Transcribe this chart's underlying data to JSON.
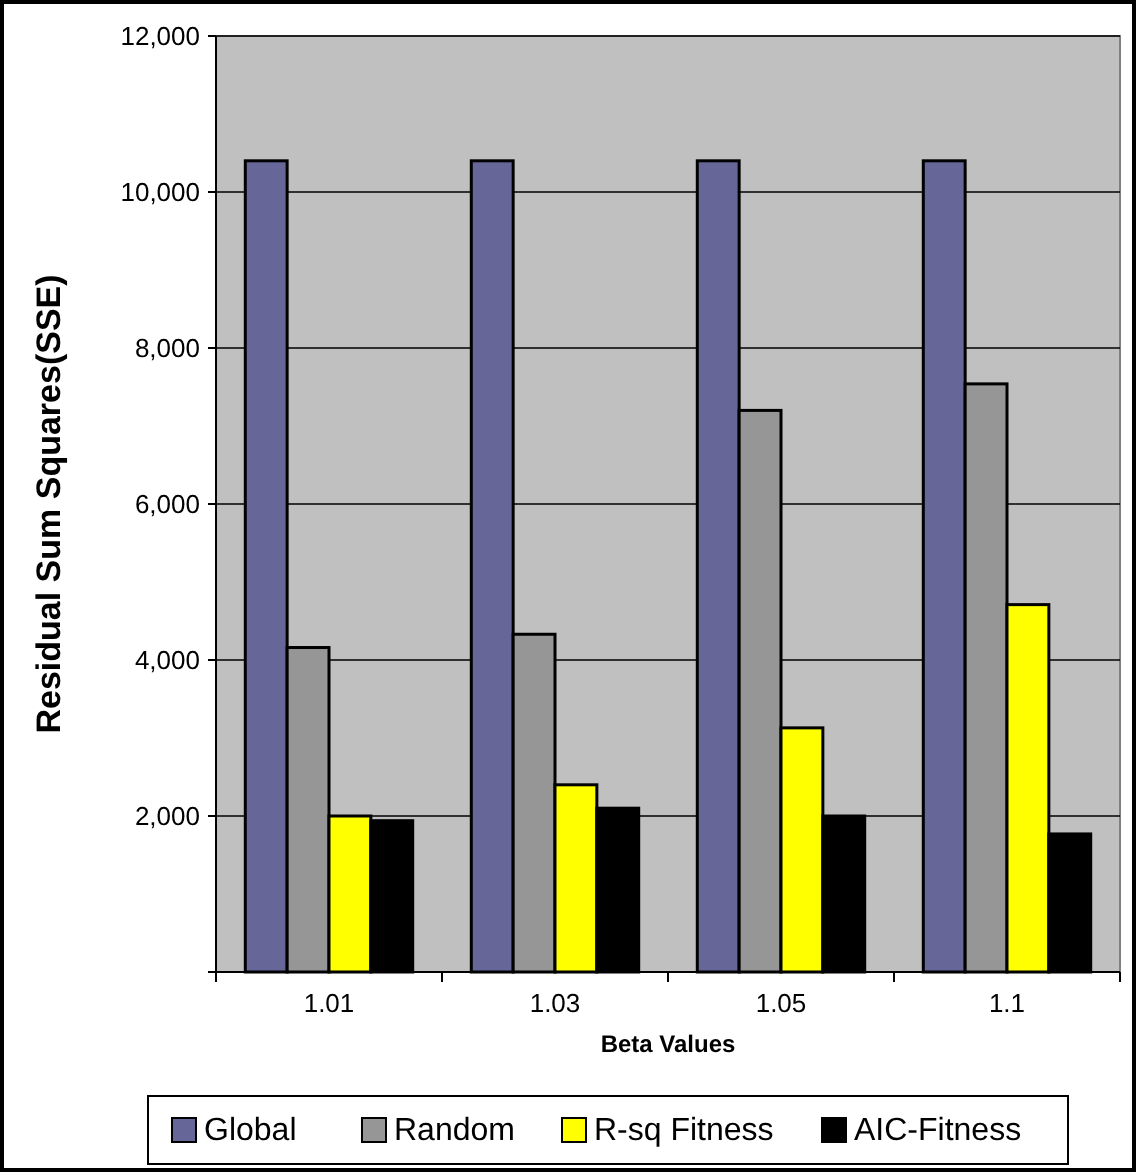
{
  "chart_data": {
    "type": "bar",
    "xlabel": "Beta Values",
    "ylabel": "Residual Sum Squares(SSE)",
    "categories": [
      "1.01",
      "1.03",
      "1.05",
      "1.1"
    ],
    "series": [
      {
        "name": "Global",
        "color": "#666699",
        "values": [
          10400,
          10400,
          10400,
          10400
        ]
      },
      {
        "name": "Random",
        "color": "#969696",
        "values": [
          4160,
          4330,
          7200,
          7540
        ]
      },
      {
        "name": "R-sq Fitness",
        "color": "#ffff00",
        "values": [
          2000,
          2400,
          3130,
          4710
        ]
      },
      {
        "name": "AIC-Fitness",
        "color": "#000000",
        "values": [
          1940,
          2100,
          2000,
          1770
        ]
      }
    ],
    "ylim": [
      0,
      12000
    ],
    "yticks": [
      {
        "value": 0,
        "label": null
      },
      {
        "value": 2000,
        "label": "2,000"
      },
      {
        "value": 4000,
        "label": "4,000"
      },
      {
        "value": 6000,
        "label": "6,000"
      },
      {
        "value": 8000,
        "label": "8,000"
      },
      {
        "value": 10000,
        "label": "10,000"
      },
      {
        "value": 12000,
        "label": "12,000"
      }
    ],
    "grid": "y",
    "legend": "bottom"
  }
}
